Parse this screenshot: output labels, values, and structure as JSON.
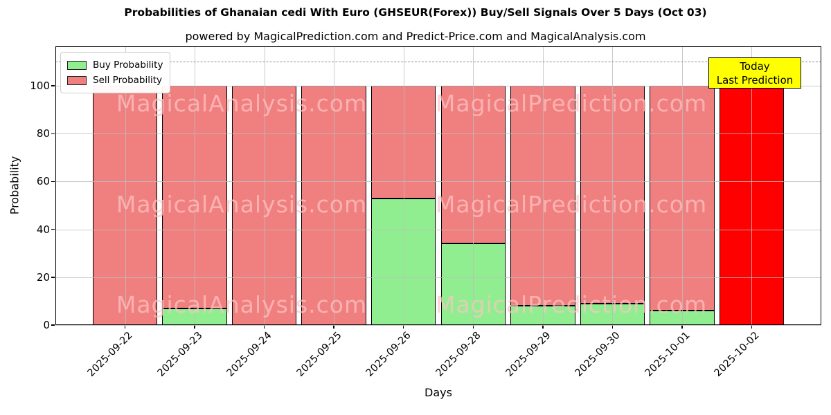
{
  "chart_data": {
    "type": "bar",
    "stacked": true,
    "title": "Probabilities of Ghanaian cedi With Euro (GHSEUR(Forex)) Buy/Sell Signals Over 5 Days (Oct 03)",
    "subtitle": "powered by MagicalPrediction.com and Predict-Price.com and MagicalAnalysis.com",
    "xlabel": "Days",
    "ylabel": "Probability",
    "categories": [
      "2025-09-22",
      "2025-09-23",
      "2025-09-24",
      "2025-09-25",
      "2025-09-26",
      "2025-09-28",
      "2025-09-29",
      "2025-09-30",
      "2025-10-01",
      "2025-10-02"
    ],
    "series": [
      {
        "name": "Buy Probability",
        "color": "#90EE90",
        "values": [
          0,
          7,
          0,
          0,
          53,
          34,
          8,
          9,
          6,
          0
        ]
      },
      {
        "name": "Sell Probability",
        "color": "#F08080",
        "values": [
          100,
          93,
          100,
          100,
          47,
          66,
          92,
          91,
          94,
          100
        ]
      }
    ],
    "today_highlight": {
      "index": 9,
      "color": "#FF0000"
    },
    "ylim": [
      0,
      116.5
    ],
    "yticks": [
      0,
      20,
      40,
      60,
      80,
      100
    ],
    "grid": true,
    "legend_position": "upper left",
    "dashed_line_y": 110,
    "bar_edge_color": "#000000",
    "annotation": {
      "line1": "Today",
      "line2": "Last Prediction",
      "bg_color": "#FFFF00"
    },
    "watermarks": {
      "left_text": "MagicalAnalysis.com",
      "right_text": "MagicalPrediction.com",
      "rows": 3
    }
  }
}
